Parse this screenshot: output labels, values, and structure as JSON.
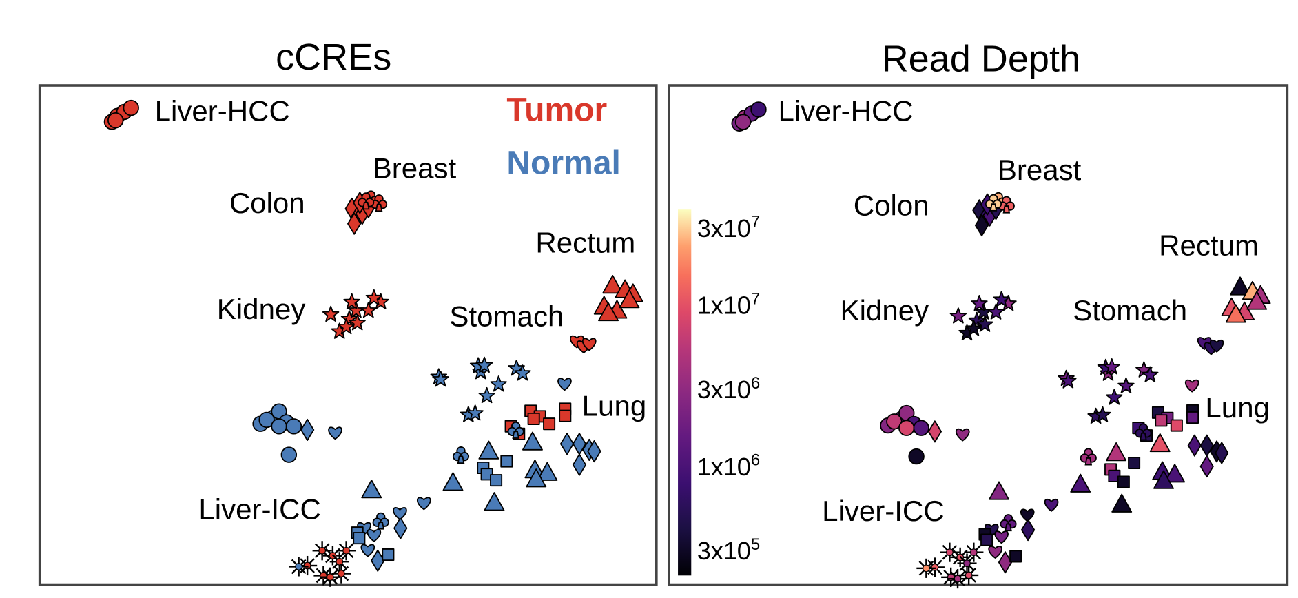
{
  "chart_data": [
    {
      "type": "scatter",
      "title": "cCREs",
      "color_by": "group",
      "legend": {
        "placement": "top-right",
        "entries": [
          {
            "label": "Tumor",
            "color": "#d9382b"
          },
          {
            "label": "Normal",
            "color": "#4a7bb7"
          }
        ]
      },
      "xlim": [
        0,
        100
      ],
      "ylim": [
        0,
        100
      ],
      "grid": false,
      "axes_shown": false,
      "cluster_labels": [
        "Liver-HCC",
        "Breast",
        "Colon",
        "Rectum",
        "Kidney",
        "Stomach",
        "Lung",
        "Liver-ICC"
      ]
    },
    {
      "type": "scatter",
      "title": "Read Depth",
      "color_by": "read_depth",
      "colorbar": {
        "scale": "log",
        "colormap": "magma",
        "range": [
          210000,
          39000000
        ],
        "ticks": [
          300000,
          1000000,
          3000000,
          10000000,
          30000000
        ],
        "tick_labels": [
          {
            "m": "3x10",
            "e": "5"
          },
          {
            "m": "1x10",
            "e": "6"
          },
          {
            "m": "3x10",
            "e": "6"
          },
          {
            "m": "1x10",
            "e": "7"
          },
          {
            "m": "3x10",
            "e": "7"
          }
        ]
      },
      "xlim": [
        0,
        100
      ],
      "ylim": [
        0,
        100
      ],
      "grid": false,
      "axes_shown": false,
      "cluster_labels": [
        "Liver-HCC",
        "Breast",
        "Colon",
        "Rectum",
        "Kidney",
        "Stomach",
        "Lung",
        "Liver-ICC"
      ]
    }
  ],
  "shapes": {
    "Liver-HCC": "circle",
    "Liver": "circle",
    "Colon": "diamond",
    "Breast": "club",
    "Kidney": "star",
    "Rectum": "triangle",
    "Stomach": "heart",
    "Lung": "square",
    "Liver-ICC": "asterisk"
  },
  "points": [
    {
      "tissue": "Liver-HCC",
      "group": "Tumor",
      "x": 11.7,
      "y": 92.7,
      "rd": 2000000
    },
    {
      "tissue": "Liver-HCC",
      "group": "Tumor",
      "x": 12.6,
      "y": 93.9,
      "rd": 4000000
    },
    {
      "tissue": "Liver-HCC",
      "group": "Tumor",
      "x": 13.7,
      "y": 94.7,
      "rd": 1500000
    },
    {
      "tissue": "Liver-HCC",
      "group": "Tumor",
      "x": 14.8,
      "y": 95.5,
      "rd": 800000
    },
    {
      "tissue": "Liver-HCC",
      "group": "Tumor",
      "x": 12.3,
      "y": 93.0,
      "rd": 3000000
    },
    {
      "tissue": "Colon",
      "group": "Tumor",
      "x": 50.6,
      "y": 75.3,
      "rd": 400000
    },
    {
      "tissue": "Colon",
      "group": "Tumor",
      "x": 51.5,
      "y": 73.6,
      "rd": 600000
    },
    {
      "tissue": "Colon",
      "group": "Tumor",
      "x": 52.3,
      "y": 74.3,
      "rd": 1000000
    },
    {
      "tissue": "Colon",
      "group": "Tumor",
      "x": 51.0,
      "y": 72.3,
      "rd": 300000
    },
    {
      "tissue": "Colon",
      "group": "Tumor",
      "x": 53.3,
      "y": 75.6,
      "rd": 500000
    },
    {
      "tissue": "Colon",
      "group": "Tumor",
      "x": 51.9,
      "y": 76.5,
      "rd": 800000
    },
    {
      "tissue": "Breast",
      "group": "Tumor",
      "x": 53.7,
      "y": 77.3,
      "rd": 25000000
    },
    {
      "tissue": "Breast",
      "group": "Tumor",
      "x": 55.0,
      "y": 76.5,
      "rd": 12000000
    },
    {
      "tissue": "Breast",
      "group": "Tumor",
      "x": 52.9,
      "y": 76.9,
      "rd": 30000000
    },
    {
      "tissue": "Kidney",
      "group": "Tumor",
      "x": 47.2,
      "y": 54.1,
      "rd": 2000000
    },
    {
      "tissue": "Kidney",
      "group": "Tumor",
      "x": 48.6,
      "y": 50.7,
      "rd": 300000
    },
    {
      "tissue": "Kidney",
      "group": "Tumor",
      "x": 50.2,
      "y": 53.2,
      "rd": 600000
    },
    {
      "tissue": "Kidney",
      "group": "Tumor",
      "x": 51.3,
      "y": 54.9,
      "rd": 400000
    },
    {
      "tissue": "Kidney",
      "group": "Tumor",
      "x": 53.3,
      "y": 54.9,
      "rd": 1000000
    },
    {
      "tissue": "Kidney",
      "group": "Tumor",
      "x": 55.3,
      "y": 56.6,
      "rd": 3000000
    },
    {
      "tissue": "Kidney",
      "group": "Tumor",
      "x": 54.2,
      "y": 57.4,
      "rd": 800000
    },
    {
      "tissue": "Kidney",
      "group": "Tumor",
      "x": 49.7,
      "y": 51.6,
      "rd": 300000
    },
    {
      "tissue": "Kidney",
      "group": "Tumor",
      "x": 51.5,
      "y": 52.4,
      "rd": 500000
    },
    {
      "tissue": "Kidney",
      "group": "Tumor",
      "x": 50.6,
      "y": 56.6,
      "rd": 1500000
    },
    {
      "tissue": "Rectum",
      "group": "Tumor",
      "x": 92.9,
      "y": 59.9,
      "rd": 300000
    },
    {
      "tissue": "Rectum",
      "group": "Tumor",
      "x": 94.9,
      "y": 59.0,
      "rd": 25000000
    },
    {
      "tissue": "Rectum",
      "group": "Tumor",
      "x": 96.2,
      "y": 58.2,
      "rd": 4000000
    },
    {
      "tissue": "Rectum",
      "group": "Tumor",
      "x": 91.5,
      "y": 55.7,
      "rd": 10000000
    },
    {
      "tissue": "Rectum",
      "group": "Tumor",
      "x": 93.6,
      "y": 54.9,
      "rd": 8000000
    },
    {
      "tissue": "Rectum",
      "group": "Tumor",
      "x": 92.2,
      "y": 54.4,
      "rd": 15000000
    },
    {
      "tissue": "Rectum",
      "group": "Tumor",
      "x": 95.6,
      "y": 57.0,
      "rd": 5000000
    },
    {
      "tissue": "Stomach",
      "group": "Tumor",
      "x": 87.1,
      "y": 48.8,
      "rd": 1000000
    },
    {
      "tissue": "Stomach",
      "group": "Tumor",
      "x": 88.2,
      "y": 47.8,
      "rd": 600000
    },
    {
      "tissue": "Stomach",
      "group": "Tumor",
      "x": 89.1,
      "y": 48.3,
      "rd": 400000
    },
    {
      "tissue": "Lung",
      "group": "Tumor",
      "x": 79.6,
      "y": 34.8,
      "rd": 400000
    },
    {
      "tissue": "Lung",
      "group": "Tumor",
      "x": 81.1,
      "y": 33.7,
      "rd": 2000000
    },
    {
      "tissue": "Lung",
      "group": "Tumor",
      "x": 80.1,
      "y": 33.2,
      "rd": 6000000
    },
    {
      "tissue": "Lung",
      "group": "Tumor",
      "x": 82.6,
      "y": 32.2,
      "rd": 9000000
    },
    {
      "tissue": "Lung",
      "group": "Tumor",
      "x": 85.2,
      "y": 35.2,
      "rd": 300000
    },
    {
      "tissue": "Lung",
      "group": "Tumor",
      "x": 85.2,
      "y": 33.8,
      "rd": 1500000
    },
    {
      "tissue": "Lung",
      "group": "Tumor",
      "x": 76.4,
      "y": 31.7,
      "rd": 800000
    },
    {
      "tissue": "Lung",
      "group": "Tumor",
      "x": 77.7,
      "y": 30.2,
      "rd": 500000
    },
    {
      "tissue": "Liver-ICC",
      "group": "Tumor",
      "x": 45.8,
      "y": 6.8,
      "rd": 8000000
    },
    {
      "tissue": "Liver-ICC",
      "group": "Tumor",
      "x": 47.5,
      "y": 5.8,
      "rd": 10000000
    },
    {
      "tissue": "Liver-ICC",
      "group": "Tumor",
      "x": 49.7,
      "y": 6.8,
      "rd": 5000000
    },
    {
      "tissue": "Liver-ICC",
      "group": "Tumor",
      "x": 48.6,
      "y": 4.6,
      "rd": 3000000
    },
    {
      "tissue": "Liver-ICC",
      "group": "Tumor",
      "x": 43.4,
      "y": 3.8,
      "rd": 12000000
    },
    {
      "tissue": "Liver-ICC",
      "group": "Tumor",
      "x": 46.0,
      "y": 1.8,
      "rd": 6000000
    },
    {
      "tissue": "Liver-ICC",
      "group": "Tumor",
      "x": 47.1,
      "y": 1.5,
      "rd": 4000000
    },
    {
      "tissue": "Liver-ICC",
      "group": "Tumor",
      "x": 48.9,
      "y": 2.2,
      "rd": 9000000
    },
    {
      "tissue": "Liver-ICC",
      "group": "Normal",
      "x": 42.0,
      "y": 3.6,
      "rd": 20000000
    },
    {
      "tissue": "Liver",
      "group": "Normal",
      "x": 35.8,
      "y": 32.2,
      "rd": 2500000
    },
    {
      "tissue": "Liver",
      "group": "Normal",
      "x": 38.0,
      "y": 33.5,
      "rd": 1500000
    },
    {
      "tissue": "Liver",
      "group": "Normal",
      "x": 38.8,
      "y": 34.7,
      "rd": 3000000
    },
    {
      "tissue": "Liver",
      "group": "Normal",
      "x": 36.8,
      "y": 33.0,
      "rd": 6000000
    },
    {
      "tissue": "Liver",
      "group": "Normal",
      "x": 40.0,
      "y": 32.5,
      "rd": 1000000
    },
    {
      "tissue": "Liver",
      "group": "Normal",
      "x": 38.8,
      "y": 31.7,
      "rd": 8000000
    },
    {
      "tissue": "Liver",
      "group": "Normal",
      "x": 41.2,
      "y": 31.7,
      "rd": 1200000
    },
    {
      "tissue": "Liver",
      "group": "Normal",
      "x": 40.4,
      "y": 26.0,
      "rd": 300000
    },
    {
      "tissue": "Colon",
      "group": "Normal",
      "x": 43.4,
      "y": 31.0,
      "rd": 8000000
    },
    {
      "tissue": "Colon",
      "group": "Normal",
      "x": 85.5,
      "y": 28.2,
      "rd": 1000000
    },
    {
      "tissue": "Colon",
      "group": "Normal",
      "x": 87.5,
      "y": 28.2,
      "rd": 400000
    },
    {
      "tissue": "Colon",
      "group": "Normal",
      "x": 89.1,
      "y": 27.0,
      "rd": 300000
    },
    {
      "tissue": "Colon",
      "group": "Normal",
      "x": 89.9,
      "y": 26.7,
      "rd": 500000
    },
    {
      "tissue": "Colon",
      "group": "Normal",
      "x": 87.5,
      "y": 24.0,
      "rd": 1500000
    },
    {
      "tissue": "Colon",
      "group": "Normal",
      "x": 58.5,
      "y": 11.3,
      "rd": 600000
    },
    {
      "tissue": "Colon",
      "group": "Normal",
      "x": 54.8,
      "y": 4.8,
      "rd": 3000000
    },
    {
      "tissue": "Stomach",
      "group": "Normal",
      "x": 47.9,
      "y": 30.5,
      "rd": 3000000
    },
    {
      "tissue": "Stomach",
      "group": "Normal",
      "x": 85.1,
      "y": 40.3,
      "rd": 4000000
    },
    {
      "tissue": "Stomach",
      "group": "Normal",
      "x": 62.3,
      "y": 16.4,
      "rd": 1000000
    },
    {
      "tissue": "Stomach",
      "group": "Normal",
      "x": 58.4,
      "y": 14.4,
      "rd": 300000
    },
    {
      "tissue": "Stomach",
      "group": "Normal",
      "x": 52.6,
      "y": 11.4,
      "rd": 500000
    },
    {
      "tissue": "Stomach",
      "group": "Normal",
      "x": 54.2,
      "y": 10.0,
      "rd": 2000000
    },
    {
      "tissue": "Stomach",
      "group": "Normal",
      "x": 53.2,
      "y": 7.0,
      "rd": 3000000
    },
    {
      "tissue": "Kidney",
      "group": "Normal",
      "x": 64.7,
      "y": 41.6,
      "rd": 2000000
    },
    {
      "tissue": "Kidney",
      "group": "Normal",
      "x": 65.0,
      "y": 41.1,
      "rd": 1000000
    },
    {
      "tissue": "Kidney",
      "group": "Normal",
      "x": 71.5,
      "y": 42.6,
      "rd": 3000000
    },
    {
      "tissue": "Kidney",
      "group": "Normal",
      "x": 71.1,
      "y": 43.8,
      "rd": 800000
    },
    {
      "tissue": "Kidney",
      "group": "Normal",
      "x": 72.1,
      "y": 43.9,
      "rd": 1500000
    },
    {
      "tissue": "Kidney",
      "group": "Normal",
      "x": 77.3,
      "y": 43.3,
      "rd": 2500000
    },
    {
      "tissue": "Kidney",
      "group": "Normal",
      "x": 78.3,
      "y": 42.3,
      "rd": 1000000
    },
    {
      "tissue": "Kidney",
      "group": "Normal",
      "x": 74.4,
      "y": 40.1,
      "rd": 1200000
    },
    {
      "tissue": "Kidney",
      "group": "Normal",
      "x": 72.5,
      "y": 37.8,
      "rd": 800000
    },
    {
      "tissue": "Kidney",
      "group": "Normal",
      "x": 69.5,
      "y": 34.0,
      "rd": 600000
    },
    {
      "tissue": "Kidney",
      "group": "Normal",
      "x": 70.6,
      "y": 34.3,
      "rd": 500000
    },
    {
      "tissue": "Breast",
      "group": "Normal",
      "x": 68.3,
      "y": 26.0,
      "rd": 4000000
    },
    {
      "tissue": "Breast",
      "group": "Normal",
      "x": 77.2,
      "y": 31.0,
      "rd": 600000
    },
    {
      "tissue": "Breast",
      "group": "Normal",
      "x": 55.3,
      "y": 12.8,
      "rd": 1500000
    },
    {
      "tissue": "Rectum",
      "group": "Normal",
      "x": 72.8,
      "y": 26.7,
      "rd": 5000000
    },
    {
      "tissue": "Rectum",
      "group": "Normal",
      "x": 79.9,
      "y": 28.5,
      "rd": 10000000
    },
    {
      "tissue": "Rectum",
      "group": "Normal",
      "x": 80.3,
      "y": 22.9,
      "rd": 800000
    },
    {
      "tissue": "Rectum",
      "group": "Normal",
      "x": 82.3,
      "y": 22.4,
      "rd": 1000000
    },
    {
      "tissue": "Rectum",
      "group": "Normal",
      "x": 80.5,
      "y": 21.1,
      "rd": 600000
    },
    {
      "tissue": "Rectum",
      "group": "Normal",
      "x": 67.0,
      "y": 20.4,
      "rd": 1000000
    },
    {
      "tissue": "Rectum",
      "group": "Normal",
      "x": 53.8,
      "y": 18.9,
      "rd": 2500000
    },
    {
      "tissue": "Rectum",
      "group": "Normal",
      "x": 73.7,
      "y": 16.4,
      "rd": 300000
    },
    {
      "tissue": "Lung",
      "group": "Normal",
      "x": 75.7,
      "y": 24.7,
      "rd": 400000
    },
    {
      "tissue": "Lung",
      "group": "Normal",
      "x": 71.9,
      "y": 23.4,
      "rd": 5000000
    },
    {
      "tissue": "Lung",
      "group": "Normal",
      "x": 72.5,
      "y": 22.1,
      "rd": 1000000
    },
    {
      "tissue": "Lung",
      "group": "Normal",
      "x": 74.0,
      "y": 20.9,
      "rd": 300000
    },
    {
      "tissue": "Lung",
      "group": "Normal",
      "x": 51.5,
      "y": 10.4,
      "rd": 300000
    },
    {
      "tissue": "Lung",
      "group": "Normal",
      "x": 51.8,
      "y": 9.3,
      "rd": 500000
    },
    {
      "tissue": "Lung",
      "group": "Normal",
      "x": 56.5,
      "y": 6.0,
      "rd": 300000
    }
  ],
  "colors": {
    "tumor": "#d9382b",
    "normal": "#4a7bb7",
    "frame": "#444444"
  }
}
